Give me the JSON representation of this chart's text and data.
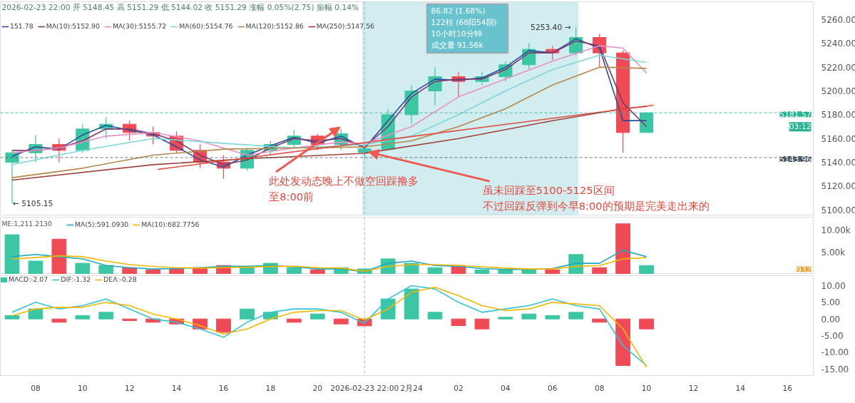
{
  "chart_data": [
    {
      "type": "candlestick",
      "x": [
        "2026-02-23T07:00",
        "2026-02-23T08:00",
        "2026-02-23T09:00",
        "2026-02-23T10:00",
        "2026-02-23T11:00",
        "2026-02-23T12:00",
        "2026-02-23T13:00",
        "2026-02-23T14:00",
        "2026-02-23T15:00",
        "2026-02-23T16:00",
        "2026-02-23T17:00",
        "2026-02-23T18:00",
        "2026-02-23T19:00",
        "2026-02-23T20:00",
        "2026-02-23T21:00",
        "2026-02-23T22:00",
        "2026-02-23T23:00",
        "2026-02-24T00:00",
        "2026-02-24T01:00",
        "2026-02-24T02:00",
        "2026-02-24T03:00",
        "2026-02-24T04:00",
        "2026-02-24T05:00",
        "2026-02-24T06:00",
        "2026-02-24T07:00",
        "2026-02-24T08:00",
        "2026-02-24T09:00",
        "2026-02-24T10:00"
      ],
      "ohlc": [
        [
          5140,
          5150,
          5105.15,
          5148
        ],
        [
          5148,
          5163,
          5140,
          5155
        ],
        [
          5155,
          5160,
          5140,
          5150
        ],
        [
          5150,
          5172,
          5148,
          5168
        ],
        [
          5168,
          5178,
          5160,
          5172
        ],
        [
          5172,
          5175,
          5158,
          5165
        ],
        [
          5165,
          5170,
          5155,
          5162
        ],
        [
          5162,
          5166,
          5148,
          5150
        ],
        [
          5150,
          5155,
          5135,
          5140
        ],
        [
          5140,
          5146,
          5126,
          5135
        ],
        [
          5135,
          5152,
          5133,
          5150
        ],
        [
          5150,
          5158,
          5146,
          5155
        ],
        [
          5155,
          5167,
          5152,
          5162
        ],
        [
          5162,
          5164,
          5150,
          5155
        ],
        [
          5155,
          5168,
          5150,
          5164
        ],
        [
          5148.45,
          5151.29,
          5144.02,
          5151.29
        ],
        [
          5151,
          5185,
          5150,
          5180
        ],
        [
          5180,
          5205,
          5172,
          5200
        ],
        [
          5200,
          5220,
          5188,
          5212
        ],
        [
          5212,
          5216,
          5195,
          5208
        ],
        [
          5208,
          5216,
          5205,
          5212
        ],
        [
          5212,
          5225,
          5208,
          5222
        ],
        [
          5222,
          5240,
          5218,
          5235
        ],
        [
          5235,
          5238,
          5226,
          5232
        ],
        [
          5232,
          5253.4,
          5230,
          5245
        ],
        [
          5245,
          5248,
          5220,
          5232
        ],
        [
          5232,
          5234,
          5148,
          5165
        ],
        [
          5165,
          5182,
          5165,
          5181.57
        ]
      ],
      "colors": [
        "#3cc6a3",
        "#3cc6a3",
        "#ef4b57",
        "#3cc6a3",
        "#3cc6a3",
        "#ef4b57",
        "#ef4b57",
        "#ef4b57",
        "#ef4b57",
        "#ef4b57",
        "#3cc6a3",
        "#3cc6a3",
        "#3cc6a3",
        "#ef4b57",
        "#3cc6a3",
        "#3cc6a3",
        "#3cc6a3",
        "#3cc6a3",
        "#3cc6a3",
        "#ef4b57",
        "#3cc6a3",
        "#3cc6a3",
        "#3cc6a3",
        "#ef4b57",
        "#3cc6a3",
        "#ef4b57",
        "#ef4b57",
        "#3cc6a3"
      ],
      "series": [
        {
          "type": "line",
          "name": "151.78",
          "color": "#2a4d9b",
          "values": [
            5145,
            5153,
            5151,
            5163,
            5171,
            5167,
            5163,
            5153,
            5142,
            5136,
            5146,
            5154,
            5161,
            5156,
            5162,
            5151.78,
            5175,
            5198,
            5210,
            5209,
            5211,
            5220,
            5234,
            5232,
            5244,
            5236,
            5175,
            5175
          ]
        },
        {
          "type": "line",
          "name": "MA(10):5152.90",
          "color": "#7a3b6e",
          "values": [
            5150,
            5150,
            5152,
            5158,
            5168,
            5168,
            5164,
            5158,
            5146,
            5138,
            5142,
            5152,
            5160,
            5158,
            5160,
            5152.9,
            5170,
            5195,
            5208,
            5210,
            5210,
            5218,
            5232,
            5232,
            5242,
            5238,
            5190,
            5170
          ]
        },
        {
          "type": "line",
          "name": "MA(30):5155.72",
          "color": "#e891c4",
          "x": [
            "2026-02-23T07:00",
            "2026-02-23T09:00",
            "2026-02-23T11:00",
            "2026-02-23T13:00",
            "2026-02-23T15:00",
            "2026-02-23T17:00",
            "2026-02-23T19:00",
            "2026-02-23T21:00",
            "2026-02-23T22:00",
            "2026-02-24T00:00",
            "2026-02-24T02:00",
            "2026-02-24T04:00",
            "2026-02-24T06:00",
            "2026-02-24T08:00",
            "2026-02-24T09:00",
            "2026-02-24T10:00"
          ],
          "values": [
            5148,
            5152,
            5162,
            5165,
            5158,
            5146,
            5152,
            5157,
            5155.72,
            5170,
            5195,
            5210,
            5225,
            5238,
            5236,
            5215
          ]
        },
        {
          "type": "line",
          "name": "MA(60):5154.76",
          "color": "#7fd6d6",
          "x": [
            "2026-02-23T07:00",
            "2026-02-23T10:00",
            "2026-02-23T13:00",
            "2026-02-23T16:00",
            "2026-02-23T19:00",
            "2026-02-23T22:00",
            "2026-02-24T00:00",
            "2026-02-24T02:00",
            "2026-02-24T04:00",
            "2026-02-24T06:00",
            "2026-02-24T08:00",
            "2026-02-24T10:00"
          ],
          "values": [
            5138,
            5150,
            5160,
            5156,
            5152,
            5154.76,
            5162,
            5180,
            5200,
            5218,
            5230,
            5224
          ]
        },
        {
          "type": "line",
          "name": "MA(120):5152.86",
          "color": "#b5874a",
          "x": [
            "2026-02-23T07:00",
            "2026-02-23T10:00",
            "2026-02-23T13:00",
            "2026-02-23T16:00",
            "2026-02-23T19:00",
            "2026-02-23T22:00",
            "2026-02-24T00:00",
            "2026-02-24T02:00",
            "2026-02-24T04:00",
            "2026-02-24T06:00",
            "2026-02-24T08:00",
            "2026-02-24T10:00"
          ],
          "values": [
            5127,
            5135,
            5146,
            5151,
            5152,
            5152.86,
            5158,
            5170,
            5185,
            5205,
            5220,
            5219
          ]
        },
        {
          "type": "line",
          "name": "MA(250):5147.56",
          "color": "#a0403a",
          "x": [
            "2026-02-23T07:00",
            "2026-02-23T13:00",
            "2026-02-23T17:00",
            "2026-02-23T22:00",
            "2026-02-24T02:00",
            "2026-02-24T06:00",
            "2026-02-24T09:00",
            "2026-02-24T10:00"
          ],
          "values": [
            5125,
            5138,
            5143,
            5147.56,
            5160,
            5175,
            5185,
            5187
          ]
        },
        {
          "type": "line",
          "color": "#e04b41",
          "x": [
            "2026-02-23T13:12",
            "2026-02-24T10:18"
          ],
          "values": [
            5134,
            5188
          ]
        }
      ],
      "xlim": [
        "2026-02-23T06:30",
        "2026-02-24T17:06"
      ],
      "ylim": [
        5095,
        5275
      ],
      "yticks": [
        {
          "value": 5100,
          "label": "5100.00"
        },
        {
          "value": 5120,
          "label": "5120.00"
        },
        {
          "value": 5140,
          "label": "5140.00"
        },
        {
          "value": 5160,
          "label": "5160.00"
        },
        {
          "value": 5180,
          "label": "5180.00"
        },
        {
          "value": 5200,
          "label": "5200.00"
        },
        {
          "value": 5220,
          "label": "5220.00"
        },
        {
          "value": 5240,
          "label": "5240.00"
        },
        {
          "value": 5260,
          "label": "5260.00"
        }
      ],
      "tick_labels": "y",
      "legend": "top left",
      "ref_lines": [
        {
          "axis": "x",
          "value": "2026-02-23T22:00",
          "color": "#999999",
          "line_style": "dashed"
        },
        {
          "axis": "y",
          "value": 5181.57,
          "label": "5181.57",
          "color": "#26b38f",
          "line_style": "dashed"
        },
        {
          "axis": "y",
          "value": 5143.96,
          "label": "5143.96",
          "color": "#4a5568",
          "line_style": "dashed"
        }
      ],
      "bands": [
        {
          "axis": "x",
          "from": "2026-02-23T21:54",
          "to": "2026-02-24T07:06",
          "color": "#bfe6e8"
        }
      ],
      "annotations": [
        "2026-02-23 22:00 开 5148.45 高 5151.29 低 5144.02 收 5151.29 涨幅 0.05%(2.75) 振幅 0.14%",
        "86.82 (1.68%)",
        "122柱 (68阳54阴)",
        "10小时10分钟",
        "成交量 91.56k",
        "5253.40 →",
        {
          "text": "← 5105.15",
          "x": "2026-02-23T07:00",
          "y": 5105.15
        },
        {
          "text": "此处发动态晚上不做空回踩撸多",
          "x": "2026-02-23T20:58",
          "y": 5169.7
        },
        "至8:00前",
        {
          "text": "虽未回踩至5100-5125区间",
          "x": "2026-02-23T22:10",
          "y": 5148.6
        },
        "不过回踩反弹到今早8:00的预期是完美走出来的",
        "03:12"
      ]
    },
    {
      "type": "bar",
      "x": [
        "2026-02-23T07:00",
        "2026-02-23T08:00",
        "2026-02-23T09:00",
        "2026-02-23T10:00",
        "2026-02-23T11:00",
        "2026-02-23T12:00",
        "2026-02-23T13:00",
        "2026-02-23T14:00",
        "2026-02-23T15:00",
        "2026-02-23T16:00",
        "2026-02-23T17:00",
        "2026-02-23T18:00",
        "2026-02-23T19:00",
        "2026-02-23T20:00",
        "2026-02-23T21:00",
        "2026-02-23T22:00",
        "2026-02-23T23:00",
        "2026-02-24T00:00",
        "2026-02-24T01:00",
        "2026-02-24T02:00",
        "2026-02-24T03:00",
        "2026-02-24T04:00",
        "2026-02-24T05:00",
        "2026-02-24T06:00",
        "2026-02-24T07:00",
        "2026-02-24T08:00",
        "2026-02-24T09:00",
        "2026-02-24T10:00"
      ],
      "values": [
        9000,
        3000,
        8000,
        2500,
        2000,
        1500,
        1000,
        1200,
        1500,
        2000,
        1500,
        2500,
        1500,
        1000,
        1500,
        1211.213,
        3500,
        2500,
        1500,
        2000,
        1000,
        1000,
        1200,
        1000,
        4500,
        1500,
        11500,
        2000
      ],
      "colors": [
        "#3cc6a3",
        "#3cc6a3",
        "#ef4b57",
        "#3cc6a3",
        "#3cc6a3",
        "#ef4b57",
        "#ef4b57",
        "#ef4b57",
        "#ef4b57",
        "#ef4b57",
        "#3cc6a3",
        "#3cc6a3",
        "#3cc6a3",
        "#ef4b57",
        "#3cc6a3",
        "#3cc6a3",
        "#3cc6a3",
        "#3cc6a3",
        "#3cc6a3",
        "#ef4b57",
        "#3cc6a3",
        "#3cc6a3",
        "#3cc6a3",
        "#ef4b57",
        "#3cc6a3",
        "#ef4b57",
        "#ef4b57",
        "#3cc6a3"
      ],
      "series": [
        {
          "type": "line",
          "name": "MA(5):591.0930",
          "color": "#1fa9c0",
          "values": [
            4000,
            4500,
            4000,
            3500,
            2000,
            1500,
            1200,
            1300,
            1500,
            1800,
            1800,
            2000,
            1700,
            1200,
            1200,
            591.093,
            2500,
            3000,
            2000,
            1800,
            1300,
            1100,
            1100,
            1300,
            2500,
            2500,
            5500,
            4000
          ]
        },
        {
          "type": "line",
          "name": "MA(10):682.7756",
          "color": "#f2b705",
          "values": [
            3500,
            3800,
            4200,
            4000,
            3000,
            2200,
            1800,
            1500,
            1400,
            1500,
            1600,
            1800,
            1800,
            1500,
            1400,
            682.7756,
            1800,
            2200,
            2200,
            2000,
            1700,
            1400,
            1200,
            1200,
            1800,
            2000,
            3500,
            3800
          ]
        }
      ],
      "xlim": [
        "2026-02-23T06:30",
        "2026-02-24T17:06"
      ],
      "ylim": [
        0,
        13000
      ],
      "yticks": [
        {
          "value": 5000,
          "label": "5.00k"
        },
        {
          "value": 10000,
          "label": "10.00k"
        }
      ],
      "tick_labels": "y",
      "legend": "top left",
      "ref_lines": [
        {
          "axis": "x",
          "value": "2026-02-23T22:00",
          "color": "#999999",
          "line_style": "dashed"
        }
      ],
      "annotations": [
        "ME:1,211.2130",
        "932"
      ]
    },
    {
      "type": "bar",
      "x": [
        "2026-02-23T07:00",
        "2026-02-23T08:00",
        "2026-02-23T09:00",
        "2026-02-23T10:00",
        "2026-02-23T11:00",
        "2026-02-23T12:00",
        "2026-02-23T13:00",
        "2026-02-23T14:00",
        "2026-02-23T15:00",
        "2026-02-23T16:00",
        "2026-02-23T17:00",
        "2026-02-23T18:00",
        "2026-02-23T19:00",
        "2026-02-23T20:00",
        "2026-02-23T21:00",
        "2026-02-23T22:00",
        "2026-02-23T23:00",
        "2026-02-24T00:00",
        "2026-02-24T01:00",
        "2026-02-24T02:00",
        "2026-02-24T03:00",
        "2026-02-24T04:00",
        "2026-02-24T05:00",
        "2026-02-24T06:00",
        "2026-02-24T07:00",
        "2026-02-24T08:00",
        "2026-02-24T09:00",
        "2026-02-24T10:00"
      ],
      "series": [
        {
          "type": "bar",
          "name": "MACD:-2.07",
          "colors": [
            "#3cc6a3",
            "#3cc6a3",
            "#ef4b57",
            "#3cc6a3",
            "#3cc6a3",
            "#ef4b57",
            "#ef4b57",
            "#ef4b57",
            "#ef4b57",
            "#ef4b57",
            "#3cc6a3",
            "#3cc6a3",
            "#ef4b57",
            "#3cc6a3",
            "#ef4b57",
            "#ef4b57",
            "#3cc6a3",
            "#3cc6a3",
            "#3cc6a3",
            "#ef4b57",
            "#ef4b57",
            "#3cc6a3",
            "#3cc6a3",
            "#3cc6a3",
            "#3cc6a3",
            "#ef4b57",
            "#ef4b57",
            "#ef4b57"
          ],
          "values": [
            1,
            3,
            -1,
            1,
            2,
            -0.5,
            -1,
            -1.5,
            -3,
            -4,
            3,
            2,
            -1,
            1.5,
            -1.5,
            -2.07,
            6,
            9,
            2,
            -2,
            -3,
            0.5,
            1.5,
            1,
            2,
            -1,
            -14,
            -3
          ]
        },
        {
          "type": "line",
          "name": "DIF:-1.32",
          "color": "#33c3d6",
          "values": [
            2,
            5,
            3,
            4,
            6,
            3,
            0,
            -1,
            -3,
            -5.5,
            -1,
            2,
            3,
            3,
            2,
            -1.32,
            6,
            10,
            9,
            5,
            2,
            3,
            4,
            6,
            4,
            3,
            -8,
            -14
          ]
        },
        {
          "type": "line",
          "name": "DEA:-0.28",
          "color": "#f2b705",
          "values": [
            1,
            3,
            3.5,
            3.5,
            5,
            4,
            1.5,
            0,
            -2,
            -4.5,
            -3,
            0,
            2,
            2.5,
            2.5,
            -0.28,
            3,
            8,
            9.5,
            7,
            4,
            2.5,
            3,
            5,
            4.5,
            4,
            -3,
            -14.5
          ]
        }
      ],
      "xlim": [
        "2026-02-23T06:30",
        "2026-02-24T17:06"
      ],
      "ylim": [
        -17,
        13
      ],
      "yticks": [
        {
          "value": 10,
          "label": "10.00"
        },
        {
          "value": 5,
          "label": "5.00"
        },
        {
          "value": 0,
          "label": "0.00"
        },
        {
          "value": -5,
          "label": "-5.00"
        },
        {
          "value": -10,
          "label": "-10.00"
        },
        {
          "value": -15,
          "label": "-15.00"
        }
      ],
      "xticks": [
        {
          "value": "2026-02-23T08:00",
          "label": "08"
        },
        {
          "value": "2026-02-23T10:00",
          "label": "10"
        },
        {
          "value": "2026-02-23T12:00",
          "label": "12"
        },
        {
          "value": "2026-02-23T14:00",
          "label": "14"
        },
        {
          "value": "2026-02-23T16:00",
          "label": "16"
        },
        {
          "value": "2026-02-23T18:00",
          "label": "18"
        },
        {
          "value": "2026-02-23T20:00",
          "label": "20"
        },
        {
          "value": "2026-02-23T22:00",
          "label": "2026-02-23 22:00"
        },
        {
          "value": "2026-02-24T00:00",
          "label": "2月24"
        },
        {
          "value": "2026-02-24T02:00",
          "label": "02"
        },
        {
          "value": "2026-02-24T04:00",
          "label": "04"
        },
        {
          "value": "2026-02-24T06:00",
          "label": "06"
        },
        {
          "value": "2026-02-24T08:00",
          "label": "08"
        },
        {
          "value": "2026-02-24T10:00",
          "label": "10"
        },
        {
          "value": "2026-02-24T12:00",
          "label": "12"
        },
        {
          "value": "2026-02-24T14:00",
          "label": "14"
        },
        {
          "value": "2026-02-24T16:00",
          "label": "16"
        }
      ],
      "legend": "top left",
      "ref_lines": [
        {
          "axis": "x",
          "value": "2026-02-23T22:00",
          "color": "#999999",
          "line_style": "dashed"
        }
      ]
    }
  ]
}
